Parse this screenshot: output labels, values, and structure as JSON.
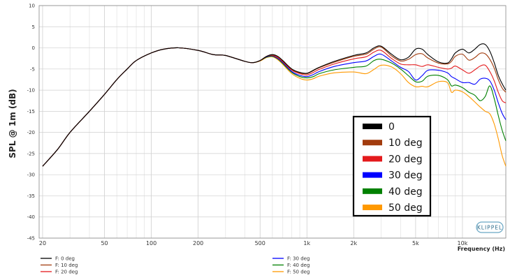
{
  "chart_data": {
    "type": "line",
    "xlabel": "Frequency (Hz)",
    "ylabel": "SPL @ 1m (dB)",
    "xscale": "log",
    "xlim": [
      19,
      19000
    ],
    "ylim": [
      -45,
      10
    ],
    "xticks": [
      20,
      50,
      100,
      200,
      500,
      1000,
      2000,
      5000,
      10000
    ],
    "xtick_labels": [
      "20",
      "50",
      "100",
      "200",
      "500",
      "1k",
      "2k",
      "5k",
      "10k"
    ],
    "yticks": [
      10,
      5,
      0,
      -5,
      -10,
      -15,
      -20,
      -25,
      -30,
      -35,
      -40,
      -45
    ],
    "grid": true,
    "legend_position": "lower-right, inside plot",
    "watermark": "KLIPPEL",
    "series": [
      {
        "name": "0",
        "legend_label": "F: 0 deg",
        "color": "#000000",
        "x": [
          20,
          25,
          30,
          40,
          50,
          60,
          70,
          80,
          100,
          120,
          150,
          200,
          250,
          300,
          400,
          450,
          500,
          550,
          600,
          650,
          700,
          800,
          900,
          1000,
          1100,
          1200,
          1500,
          2000,
          2400,
          2700,
          3000,
          3500,
          4000,
          4500,
          5000,
          5500,
          6000,
          7000,
          8000,
          8500,
          9000,
          10000,
          11000,
          12000,
          13000,
          14000,
          15000,
          16000,
          17000,
          18000,
          19000
        ],
        "y": [
          -28,
          -24,
          -20,
          -15,
          -11,
          -7.5,
          -5,
          -3,
          -1.2,
          -0.3,
          0,
          -0.6,
          -1.6,
          -1.8,
          -3.2,
          -3.5,
          -3,
          -2,
          -1.6,
          -2,
          -3,
          -5,
          -5.8,
          -6,
          -5.3,
          -4.6,
          -3.2,
          -1.8,
          -1.2,
          0,
          0.4,
          -1.5,
          -2.8,
          -2.2,
          -0.3,
          -0.3,
          -1.6,
          -3.3,
          -3.6,
          -2.6,
          -1.2,
          -0.3,
          -1.2,
          -0.3,
          0.8,
          0.8,
          -0.8,
          -3.5,
          -6.5,
          -8.5,
          -10
        ]
      },
      {
        "name": "10 deg",
        "legend_label": "F: 10 deg",
        "color": "#a23c0e",
        "x": [
          20,
          25,
          30,
          40,
          50,
          60,
          70,
          80,
          100,
          120,
          150,
          200,
          250,
          300,
          400,
          450,
          500,
          550,
          600,
          650,
          700,
          800,
          900,
          1000,
          1100,
          1200,
          1500,
          2000,
          2400,
          2700,
          3000,
          3500,
          4000,
          4500,
          5000,
          5500,
          6000,
          7000,
          8000,
          8500,
          9000,
          10000,
          11000,
          12000,
          13000,
          14000,
          15000,
          16000,
          17000,
          18000,
          19000
        ],
        "y": [
          -28,
          -24,
          -20,
          -15,
          -11,
          -7.5,
          -5,
          -3,
          -1.2,
          -0.3,
          0,
          -0.6,
          -1.6,
          -1.8,
          -3.2,
          -3.5,
          -3,
          -2,
          -1.7,
          -2.1,
          -3.1,
          -5.1,
          -5.9,
          -6.1,
          -5.4,
          -4.7,
          -3.4,
          -2,
          -1.5,
          -0.3,
          0.2,
          -1.9,
          -3.1,
          -2.7,
          -1.6,
          -1.4,
          -2.4,
          -3.6,
          -3.8,
          -3.2,
          -2,
          -1.5,
          -2.9,
          -2.3,
          -1.3,
          -1.4,
          -2.7,
          -4.8,
          -7.5,
          -9.5,
          -10.5
        ]
      },
      {
        "name": "20 deg",
        "legend_label": "F: 20 deg",
        "color": "#e41a1c",
        "x": [
          20,
          25,
          30,
          40,
          50,
          60,
          70,
          80,
          100,
          120,
          150,
          200,
          250,
          300,
          400,
          450,
          500,
          550,
          600,
          650,
          700,
          800,
          900,
          1000,
          1100,
          1200,
          1500,
          2000,
          2400,
          2700,
          3000,
          3500,
          4000,
          4500,
          5000,
          5500,
          6000,
          7000,
          8000,
          8500,
          9000,
          10000,
          11000,
          12000,
          13000,
          14000,
          15000,
          16000,
          17000,
          18000,
          19000
        ],
        "y": [
          -28,
          -24,
          -20,
          -15,
          -11,
          -7.5,
          -5,
          -3,
          -1.2,
          -0.3,
          0,
          -0.6,
          -1.6,
          -1.8,
          -3.2,
          -3.5,
          -3,
          -2,
          -1.8,
          -2.3,
          -3.3,
          -5.3,
          -6.1,
          -6.4,
          -5.8,
          -5.1,
          -3.8,
          -2.6,
          -2.1,
          -1,
          -0.6,
          -2.5,
          -3.8,
          -4,
          -4,
          -4.4,
          -4,
          -4.6,
          -5,
          -4.8,
          -4.3,
          -5.2,
          -6,
          -5.2,
          -4.3,
          -4.1,
          -5.6,
          -7.8,
          -10.5,
          -12.5,
          -13
        ]
      },
      {
        "name": "30 deg",
        "legend_label": "F: 30 deg",
        "color": "#0000ff",
        "x": [
          20,
          25,
          30,
          40,
          50,
          60,
          70,
          80,
          100,
          120,
          150,
          200,
          250,
          300,
          400,
          450,
          500,
          550,
          600,
          650,
          700,
          800,
          900,
          1000,
          1100,
          1200,
          1500,
          2000,
          2400,
          2700,
          3000,
          3500,
          4000,
          4500,
          5000,
          5500,
          6000,
          7000,
          8000,
          8500,
          9000,
          10000,
          11000,
          12000,
          13000,
          14000,
          15000,
          16000,
          17000,
          18000,
          19000
        ],
        "y": [
          -28,
          -24,
          -20,
          -15,
          -11,
          -7.5,
          -5,
          -3,
          -1.2,
          -0.3,
          0,
          -0.6,
          -1.6,
          -1.8,
          -3.2,
          -3.5,
          -3,
          -2.1,
          -1.9,
          -2.5,
          -3.5,
          -5.6,
          -6.5,
          -6.8,
          -6.3,
          -5.6,
          -4.4,
          -3.5,
          -3.1,
          -2,
          -1.5,
          -3.1,
          -4.6,
          -5.6,
          -7.6,
          -6.6,
          -5.3,
          -5.3,
          -5.9,
          -6.8,
          -7.3,
          -8.2,
          -8.2,
          -8.6,
          -7.4,
          -7.2,
          -7.8,
          -10,
          -13,
          -15.5,
          -17
        ]
      },
      {
        "name": "40 deg",
        "legend_label": "F: 40 deg",
        "color": "#008000",
        "x": [
          20,
          25,
          30,
          40,
          50,
          60,
          70,
          80,
          100,
          120,
          150,
          200,
          250,
          300,
          400,
          450,
          500,
          550,
          600,
          650,
          700,
          800,
          900,
          1000,
          1100,
          1200,
          1500,
          2000,
          2400,
          2700,
          3000,
          3500,
          4000,
          4500,
          5000,
          5500,
          6000,
          7000,
          8000,
          8500,
          9000,
          10000,
          11000,
          12000,
          13000,
          14000,
          15000,
          16000,
          17000,
          18000,
          19000
        ],
        "y": [
          -28,
          -24,
          -20,
          -15,
          -11,
          -7.5,
          -5,
          -3,
          -1.2,
          -0.3,
          0,
          -0.6,
          -1.6,
          -1.8,
          -3.2,
          -3.5,
          -3,
          -2.2,
          -2,
          -2.6,
          -3.7,
          -5.8,
          -6.8,
          -7.1,
          -6.8,
          -6.1,
          -5.2,
          -4.6,
          -4.3,
          -3,
          -2.7,
          -3.6,
          -5,
          -6.6,
          -8,
          -7.9,
          -6.7,
          -6.5,
          -7.5,
          -9,
          -8.8,
          -9.4,
          -10.5,
          -11.2,
          -12.5,
          -11.5,
          -9,
          -12,
          -16,
          -19.5,
          -22
        ]
      },
      {
        "name": "50 deg",
        "legend_label": "F: 50 deg",
        "color": "#ff9900",
        "x": [
          20,
          25,
          30,
          40,
          50,
          60,
          70,
          80,
          100,
          120,
          150,
          200,
          250,
          300,
          400,
          450,
          500,
          550,
          600,
          650,
          700,
          800,
          900,
          1000,
          1100,
          1200,
          1500,
          2000,
          2400,
          2700,
          3000,
          3500,
          4000,
          4500,
          5000,
          5500,
          6000,
          7000,
          8000,
          8500,
          9000,
          10000,
          11000,
          12000,
          13000,
          14000,
          15000,
          16000,
          17000,
          18000,
          19000
        ],
        "y": [
          -28,
          -24,
          -20,
          -15,
          -11,
          -7.5,
          -5,
          -3,
          -1.2,
          -0.3,
          0,
          -0.6,
          -1.6,
          -1.8,
          -3.2,
          -3.5,
          -3.1,
          -2.3,
          -2.1,
          -2.8,
          -3.9,
          -6.1,
          -7.2,
          -7.6,
          -7.3,
          -6.7,
          -5.9,
          -5.7,
          -6.1,
          -5.1,
          -4.1,
          -4.5,
          -6.1,
          -8.2,
          -9.2,
          -9.1,
          -9.2,
          -8,
          -8.2,
          -10.5,
          -10,
          -10.4,
          -11.5,
          -12.8,
          -14,
          -15,
          -15.6,
          -18,
          -21.5,
          -25.5,
          -28
        ]
      }
    ]
  }
}
